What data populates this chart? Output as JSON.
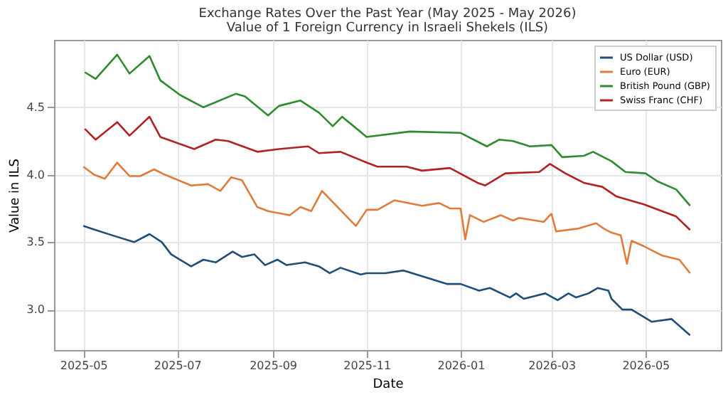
{
  "chart_data": {
    "type": "line",
    "title": "Exchange Rates Over the Past Year (May 2025 - May 2026)",
    "subtitle": "Value of 1 Foreign Currency in Israeli Shekels (ILS)",
    "xlabel": "Date",
    "ylabel": "Value in ILS",
    "series": [
      {
        "name": "US Dollar (USD)",
        "color": "#1f4e79",
        "x": [
          "2025-05-01",
          "2025-05-09",
          "2025-05-20",
          "2025-06-03",
          "2025-06-13",
          "2025-06-21",
          "2025-06-27",
          "2025-07-10",
          "2025-07-18",
          "2025-07-26",
          "2025-08-06",
          "2025-08-12",
          "2025-08-20",
          "2025-08-27",
          "2025-09-04",
          "2025-09-10",
          "2025-09-22",
          "2025-10-01",
          "2025-10-08",
          "2025-10-15",
          "2025-10-28",
          "2025-11-01",
          "2025-11-13",
          "2025-11-25",
          "2025-12-23",
          "2026-01-01",
          "2026-01-13",
          "2026-01-20",
          "2026-02-02",
          "2026-02-06",
          "2026-02-11",
          "2026-02-25",
          "2026-03-05",
          "2026-03-12",
          "2026-03-17",
          "2026-03-25",
          "2026-03-31",
          "2026-04-07",
          "2026-04-09",
          "2026-04-16",
          "2026-04-22",
          "2026-05-05",
          "2026-05-18",
          "2026-05-30"
        ],
        "values": [
          3.62,
          3.59,
          3.55,
          3.5,
          3.56,
          3.5,
          3.41,
          3.32,
          3.37,
          3.35,
          3.43,
          3.39,
          3.41,
          3.33,
          3.37,
          3.33,
          3.35,
          3.32,
          3.27,
          3.31,
          3.26,
          3.27,
          3.27,
          3.29,
          3.19,
          3.19,
          3.14,
          3.16,
          3.09,
          3.12,
          3.08,
          3.12,
          3.07,
          3.12,
          3.09,
          3.12,
          3.16,
          3.14,
          3.08,
          3.0,
          3.0,
          2.91,
          2.93,
          2.81
        ]
      },
      {
        "name": "Euro (EUR)",
        "color": "#e07b39",
        "x": [
          "2025-05-01",
          "2025-05-08",
          "2025-05-15",
          "2025-05-23",
          "2025-05-31",
          "2025-06-07",
          "2025-06-16",
          "2025-06-23",
          "2025-07-10",
          "2025-07-21",
          "2025-07-29",
          "2025-08-05",
          "2025-08-12",
          "2025-08-22",
          "2025-08-29",
          "2025-09-12",
          "2025-09-19",
          "2025-09-26",
          "2025-10-03",
          "2025-10-25",
          "2025-11-01",
          "2025-11-08",
          "2025-11-19",
          "2025-12-07",
          "2025-12-18",
          "2025-12-25",
          "2026-01-01",
          "2026-01-04",
          "2026-01-07",
          "2026-01-16",
          "2026-01-27",
          "2026-02-04",
          "2026-02-08",
          "2026-02-24",
          "2026-02-28",
          "2026-03-01",
          "2026-03-04",
          "2026-03-18",
          "2026-03-30",
          "2026-04-04",
          "2026-04-09",
          "2026-04-15",
          "2026-04-19",
          "2026-04-22",
          "2026-04-30",
          "2026-05-12",
          "2026-05-23",
          "2026-05-30"
        ],
        "values": [
          4.06,
          4.0,
          3.97,
          4.09,
          3.99,
          3.99,
          4.04,
          4.0,
          3.92,
          3.93,
          3.88,
          3.98,
          3.96,
          3.76,
          3.73,
          3.7,
          3.76,
          3.73,
          3.88,
          3.62,
          3.74,
          3.74,
          3.81,
          3.77,
          3.79,
          3.75,
          3.75,
          3.52,
          3.7,
          3.65,
          3.7,
          3.66,
          3.68,
          3.65,
          3.7,
          3.71,
          3.58,
          3.6,
          3.64,
          3.6,
          3.57,
          3.55,
          3.34,
          3.51,
          3.47,
          3.4,
          3.37,
          3.27
        ]
      },
      {
        "name": "British Pound (GBP)",
        "color": "#2e8b2e",
        "x": [
          "2025-05-02",
          "2025-05-09",
          "2025-05-23",
          "2025-05-31",
          "2025-06-13",
          "2025-06-20",
          "2025-07-03",
          "2025-07-18",
          "2025-08-08",
          "2025-08-14",
          "2025-08-29",
          "2025-09-05",
          "2025-09-19",
          "2025-10-01",
          "2025-10-10",
          "2025-10-16",
          "2025-11-01",
          "2025-11-29",
          "2026-01-01",
          "2026-01-18",
          "2026-01-26",
          "2026-02-04",
          "2026-02-15",
          "2026-03-01",
          "2026-03-08",
          "2026-03-22",
          "2026-03-28",
          "2026-04-09",
          "2026-04-18",
          "2026-05-01",
          "2026-05-09",
          "2026-05-21",
          "2026-05-30"
        ],
        "values": [
          4.76,
          4.71,
          4.89,
          4.75,
          4.88,
          4.7,
          4.59,
          4.5,
          4.6,
          4.58,
          4.44,
          4.51,
          4.55,
          4.46,
          4.36,
          4.43,
          4.28,
          4.32,
          4.31,
          4.21,
          4.26,
          4.25,
          4.21,
          4.22,
          4.13,
          4.14,
          4.17,
          4.1,
          4.02,
          4.01,
          3.95,
          3.89,
          3.77
        ]
      },
      {
        "name": "Swiss Franc (CHF)",
        "color": "#b22222",
        "x": [
          "2025-05-02",
          "2025-05-09",
          "2025-05-23",
          "2025-05-31",
          "2025-06-13",
          "2025-06-20",
          "2025-07-12",
          "2025-07-26",
          "2025-08-03",
          "2025-08-22",
          "2025-09-05",
          "2025-09-24",
          "2025-10-01",
          "2025-10-15",
          "2025-11-01",
          "2025-11-08",
          "2025-11-27",
          "2025-12-07",
          "2025-12-25",
          "2026-01-12",
          "2026-01-17",
          "2026-01-30",
          "2026-02-21",
          "2026-02-28",
          "2026-03-10",
          "2026-03-22",
          "2026-04-03",
          "2026-04-12",
          "2026-04-30",
          "2026-05-21",
          "2026-05-30"
        ],
        "values": [
          4.34,
          4.26,
          4.39,
          4.29,
          4.43,
          4.28,
          4.19,
          4.26,
          4.25,
          4.17,
          4.19,
          4.21,
          4.16,
          4.17,
          4.09,
          4.06,
          4.06,
          4.03,
          4.05,
          3.94,
          3.92,
          4.01,
          4.02,
          4.08,
          4.01,
          3.94,
          3.91,
          3.84,
          3.78,
          3.69,
          3.59
        ]
      }
    ],
    "xlim": [
      "2025-04-12",
      "2026-06-19"
    ],
    "xticks": [
      "2025-05",
      "2025-07",
      "2025-09",
      "2025-11",
      "2026-01",
      "2026-03",
      "2026-05"
    ],
    "ylim": [
      2.7,
      5.0
    ],
    "yticks": [
      {
        "value": 3.0,
        "label": "3.0"
      },
      {
        "value": 3.5,
        "label": "3.5"
      },
      {
        "value": 4.0,
        "label": "4.0"
      },
      {
        "value": 4.5,
        "label": "4.5"
      }
    ],
    "grid": true,
    "legend": "top right",
    "marker": "none",
    "line_style": "solid"
  }
}
